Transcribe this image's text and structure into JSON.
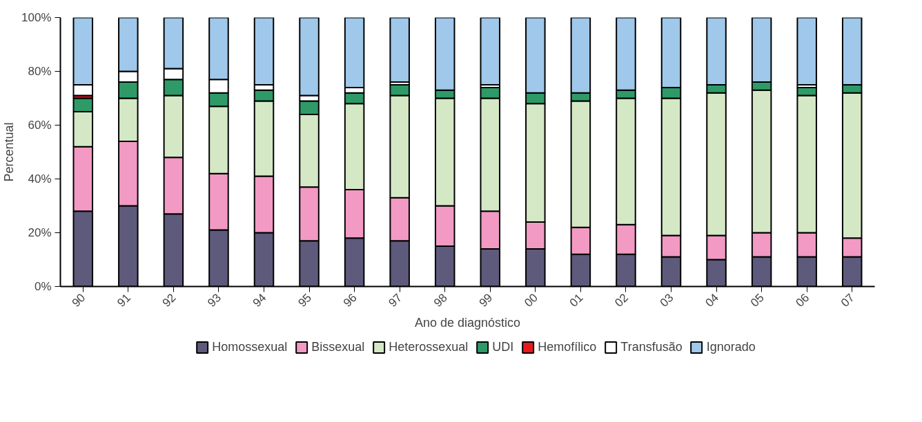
{
  "chart_data": {
    "type": "bar",
    "stacked": true,
    "xlabel": "Ano de diagnóstico",
    "ylabel": "Percentual",
    "categories": [
      "90",
      "91",
      "92",
      "93",
      "94",
      "95",
      "96",
      "97",
      "98",
      "99",
      "00",
      "01",
      "02",
      "03",
      "04",
      "05",
      "06",
      "07"
    ],
    "series": [
      {
        "name": "Homossexual",
        "color": "#5e5a7c",
        "values": [
          28,
          30,
          27,
          21,
          20,
          17,
          18,
          17,
          15,
          14,
          14,
          12,
          12,
          11,
          10,
          11,
          11,
          11
        ]
      },
      {
        "name": "Bissexual",
        "color": "#f29ac3",
        "values": [
          24,
          24,
          21,
          21,
          21,
          20,
          18,
          16,
          15,
          14,
          10,
          10,
          11,
          8,
          9,
          9,
          9,
          7
        ]
      },
      {
        "name": "Heterossexual",
        "color": "#d4e8c6",
        "values": [
          13,
          16,
          23,
          25,
          28,
          27,
          32,
          38,
          40,
          42,
          44,
          47,
          47,
          51,
          53,
          53,
          51,
          54
        ]
      },
      {
        "name": "UDI",
        "color": "#2e9a68",
        "values": [
          5,
          6,
          6,
          5,
          4,
          5,
          4,
          4,
          3,
          4,
          4,
          3,
          3,
          4,
          3,
          3,
          3,
          3
        ]
      },
      {
        "name": "Hemofílico",
        "color": "#e8191e",
        "values": [
          1,
          0,
          0,
          0,
          0,
          0,
          0,
          0,
          0,
          0,
          0,
          0,
          0,
          0,
          0,
          0,
          0,
          0
        ]
      },
      {
        "name": "Transfusão",
        "color": "#ffffff",
        "values": [
          4,
          4,
          4,
          5,
          2,
          2,
          2,
          1,
          0,
          1,
          0,
          0,
          0,
          0,
          0,
          0,
          1,
          0
        ]
      },
      {
        "name": "Ignorado",
        "color": "#9fc8ea",
        "values": [
          25,
          20,
          19,
          23,
          25,
          29,
          26,
          24,
          27,
          25,
          28,
          28,
          27,
          26,
          25,
          24,
          25,
          25
        ]
      }
    ],
    "ylim": [
      0,
      100
    ],
    "yticks": [
      {
        "value": 0,
        "label": "0%"
      },
      {
        "value": 20,
        "label": "20%"
      },
      {
        "value": 40,
        "label": "40%"
      },
      {
        "value": 60,
        "label": "60%"
      },
      {
        "value": 80,
        "label": "80%"
      },
      {
        "value": 100,
        "label": "100%"
      }
    ],
    "grid": false,
    "legend": "bottom"
  }
}
